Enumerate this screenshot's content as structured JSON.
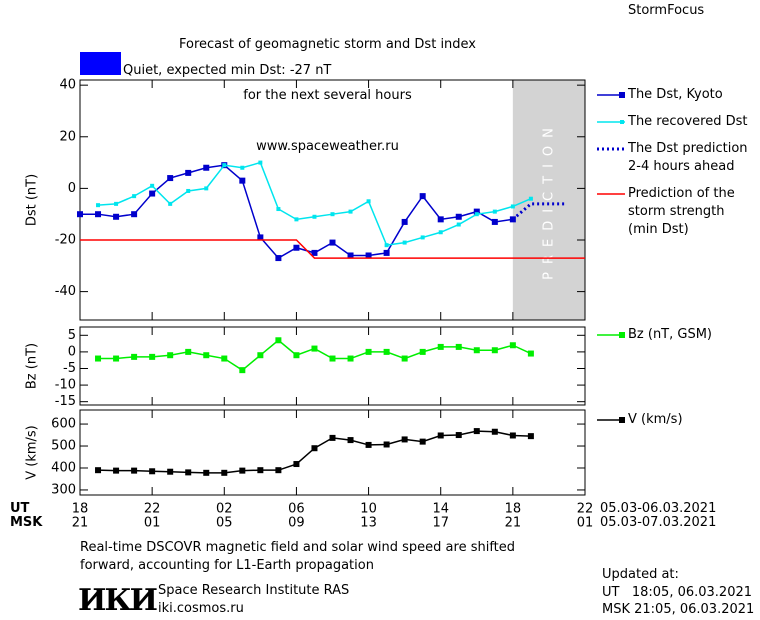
{
  "header": {
    "title": "Forecast of geomagnetic storm and Dst index",
    "subtitle": "for the next several hours",
    "url": "www.spaceweather.ru",
    "brand": "StormFocus"
  },
  "status": {
    "label": "Quiet, expected min Dst: -27 nT",
    "color": "#0000ff"
  },
  "time_axis": {
    "xlim": [
      0,
      28
    ],
    "ut_label": "UT",
    "msk_label": "MSK",
    "ut_ticks": [
      {
        "value": 0,
        "label": "18"
      },
      {
        "value": 4,
        "label": "22"
      },
      {
        "value": 8,
        "label": "02"
      },
      {
        "value": 12,
        "label": "06"
      },
      {
        "value": 16,
        "label": "10"
      },
      {
        "value": 20,
        "label": "14"
      },
      {
        "value": 24,
        "label": "18"
      },
      {
        "value": 28,
        "label": "22"
      }
    ],
    "msk_labels": [
      "21",
      "01",
      "05",
      "09",
      "13",
      "17",
      "21",
      "01"
    ],
    "ut_range": "05.03-06.03.2021",
    "msk_range": "05.03-07.03.2021"
  },
  "chart_data": [
    {
      "type": "line",
      "ylabel": "Dst (nT)",
      "ylim": [
        -51,
        42
      ],
      "yticks": [
        40,
        20,
        0,
        -20,
        -40
      ],
      "prediction_region": [
        24,
        28
      ],
      "prediction_label": "PREDICTION",
      "shade_color": "#d3d3d3",
      "series": [
        {
          "name": "The Dst, Kyoto",
          "color": "#0000cc",
          "marker": "square",
          "x": [
            0,
            1,
            2,
            3,
            4,
            5,
            6,
            7,
            8,
            9,
            10,
            11,
            12,
            13,
            14,
            15,
            16,
            17,
            18,
            19,
            20,
            21,
            22,
            23,
            24
          ],
          "values": [
            -10,
            -10,
            -11,
            -10,
            -2,
            4,
            6,
            8,
            9,
            3,
            -19,
            -27,
            -23,
            -25,
            -21,
            -26,
            -26,
            -25,
            -13,
            -3,
            -12,
            -11,
            -9,
            -13,
            -12
          ]
        },
        {
          "name": "The recovered Dst",
          "color": "#00e5ee",
          "marker": "small-square",
          "x": [
            1,
            2,
            3,
            4,
            5,
            6,
            7,
            8,
            9,
            10,
            11,
            12,
            13,
            14,
            15,
            16,
            17,
            18,
            19,
            20,
            21,
            22,
            23,
            24,
            25
          ],
          "values": [
            -6.5,
            -6,
            -3,
            1,
            -6,
            -1,
            0,
            9,
            8,
            10,
            -8,
            -12,
            -11,
            -10,
            -9,
            -5,
            -22,
            -21,
            -19,
            -17,
            -14,
            -10,
            -9,
            -7,
            -4
          ]
        },
        {
          "name": "The Dst prediction\n2-4 hours ahead",
          "color": "#0000cc",
          "dash": "dotted",
          "x": [
            24,
            25,
            26,
            27
          ],
          "values": [
            -12,
            -6,
            -6,
            -6
          ]
        },
        {
          "name": "Prediction of the\nstorm strength\n(min Dst)",
          "color": "#ff0000",
          "x": [
            0,
            12,
            13,
            28
          ],
          "values": [
            -20,
            -20,
            -27,
            -27
          ]
        }
      ]
    },
    {
      "type": "line",
      "ylabel": "Bz (nT)",
      "ylim": [
        -16,
        7.5
      ],
      "yticks": [
        5,
        0,
        -5,
        -10,
        -15
      ],
      "series": [
        {
          "name": "Bz (nT, GSM)",
          "color": "#00ee00",
          "marker": "square",
          "x": [
            1,
            2,
            3,
            4,
            5,
            6,
            7,
            8,
            9,
            10,
            11,
            12,
            13,
            14,
            15,
            16,
            17,
            18,
            19,
            20,
            21,
            22,
            23,
            24,
            25
          ],
          "values": [
            -2,
            -2,
            -1.5,
            -1.5,
            -1,
            0,
            -1,
            -2,
            -5.5,
            -1,
            3.5,
            -1,
            1,
            -2,
            -2,
            0,
            0,
            -2,
            0,
            1.5,
            1.5,
            0.5,
            0.5,
            2,
            -0.5
          ]
        }
      ]
    },
    {
      "type": "line",
      "ylabel": "V (km/s)",
      "ylim": [
        277,
        664
      ],
      "yticks": [
        600,
        500,
        400,
        300
      ],
      "series": [
        {
          "name": "V (km/s)",
          "color": "#000000",
          "marker": "square",
          "x": [
            1,
            2,
            3,
            4,
            5,
            6,
            7,
            8,
            9,
            10,
            11,
            12,
            13,
            14,
            15,
            16,
            17,
            18,
            19,
            20,
            21,
            22,
            23,
            24,
            25
          ],
          "values": [
            390,
            388,
            388,
            385,
            383,
            380,
            378,
            378,
            388,
            390,
            390,
            418,
            490,
            537,
            527,
            505,
            507,
            530,
            520,
            548,
            550,
            568,
            565,
            548,
            545
          ]
        }
      ]
    }
  ],
  "footer": {
    "note": "Real-time DSCOVR magnetic field and solar wind speed are shifted\nforward, accounting for L1-Earth propagation",
    "logo": "ИКИ",
    "institute": "Space Research Institute RAS",
    "site": "iki.cosmos.ru",
    "updated_label": "Updated at:",
    "updated_ut": "UT   18:05, 06.03.2021",
    "updated_msk": "MSK 21:05, 06.03.2021"
  }
}
